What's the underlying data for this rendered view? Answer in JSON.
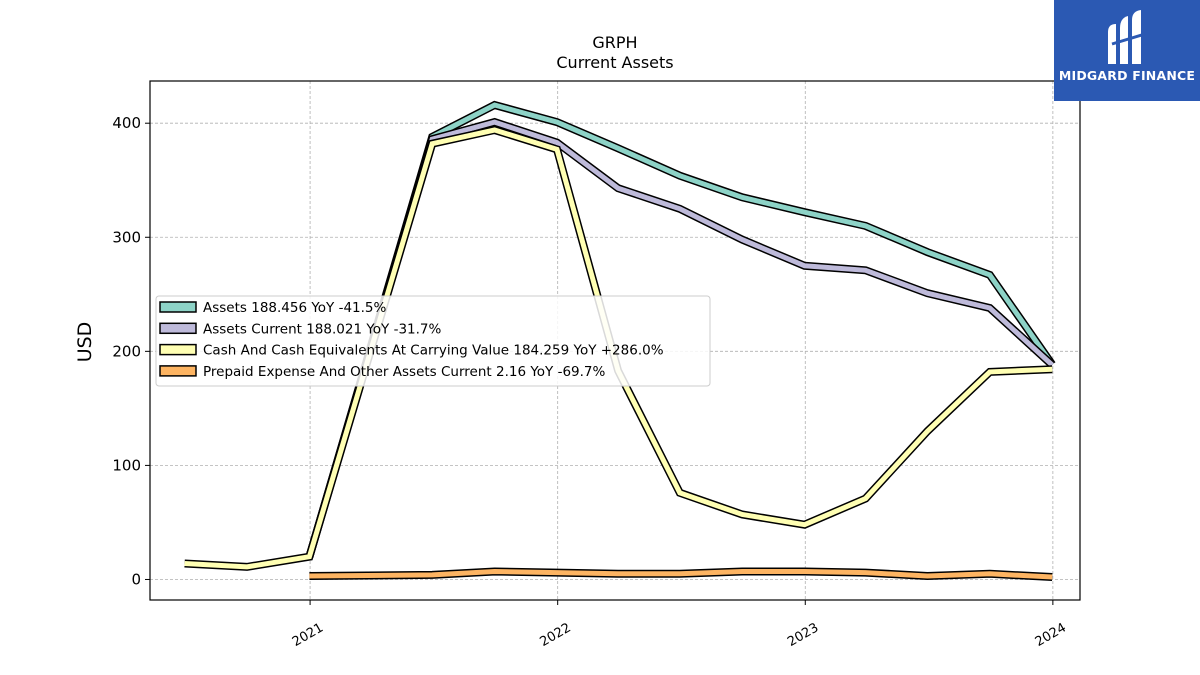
{
  "brand": {
    "name": "MIDGARD FINANCE",
    "logo_icon": "midgard-m-logo-icon",
    "background": "#2b59b3"
  },
  "chart_data": {
    "type": "line",
    "title": "GRPH",
    "subtitle": "Current  Assets",
    "ylabel": "USD",
    "xlabel": "",
    "ylim": [
      -18,
      437
    ],
    "xlim": [
      "2020-05-10",
      "2024-02-10"
    ],
    "yticks": [
      0,
      100,
      200,
      300,
      400
    ],
    "xticks": [
      "2021",
      "2022",
      "2023",
      "2024"
    ],
    "grid": true,
    "legend_position": "center-left",
    "series": [
      {
        "name": "Assets  188.456 YoY -41.5%",
        "color": "#8dd3c7",
        "x": [
          "2020-12-31",
          "2021-06-30",
          "2021-09-30",
          "2021-12-31",
          "2022-03-31",
          "2022-06-30",
          "2022-09-30",
          "2022-12-31",
          "2023-03-31",
          "2023-06-30",
          "2023-09-30",
          "2023-12-31"
        ],
        "values": [
          20,
          388,
          416,
          401,
          378,
          354,
          335,
          322,
          310,
          287,
          267,
          188.456
        ]
      },
      {
        "name": "Assets Current  188.021 YoY -31.7%",
        "color": "#bebada",
        "x": [
          "2020-12-31",
          "2021-06-30",
          "2021-09-30",
          "2021-12-31",
          "2022-03-31",
          "2022-06-30",
          "2022-09-30",
          "2022-12-31",
          "2023-03-31",
          "2023-06-30",
          "2023-09-30",
          "2023-12-31"
        ],
        "values": [
          20,
          386,
          401,
          383,
          343,
          325,
          298,
          275,
          271,
          251,
          238,
          188.021
        ]
      },
      {
        "name": "Cash And Cash Equivalents At Carrying Value  184.259 YoY +286.0%",
        "color": "#ffffb3",
        "x": [
          "2020-06-30",
          "2020-09-30",
          "2020-12-31",
          "2021-06-30",
          "2021-09-30",
          "2021-12-31",
          "2022-03-31",
          "2022-06-30",
          "2022-09-30",
          "2022-12-31",
          "2023-03-31",
          "2023-06-30",
          "2023-09-30",
          "2023-12-31"
        ],
        "values": [
          14,
          11,
          20,
          382,
          394,
          377,
          183,
          76,
          57,
          48,
          71,
          130,
          182,
          184.259
        ]
      },
      {
        "name": "Prepaid Expense And Other Assets Current  2.16 YoY -69.7%",
        "color": "#fdb462",
        "x": [
          "2020-12-31",
          "2021-06-30",
          "2021-09-30",
          "2021-12-31",
          "2022-03-31",
          "2022-06-30",
          "2022-09-30",
          "2022-12-31",
          "2023-03-31",
          "2023-06-30",
          "2023-09-30",
          "2023-12-31"
        ],
        "values": [
          3,
          4,
          7,
          6,
          5,
          5,
          7,
          7,
          6,
          3,
          5,
          2.16
        ]
      }
    ]
  }
}
